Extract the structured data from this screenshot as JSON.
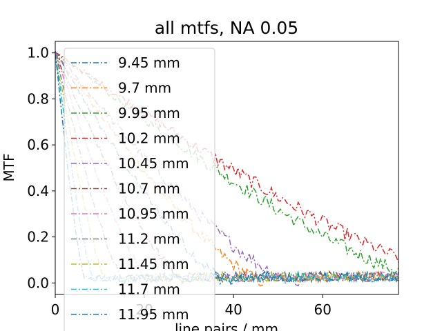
{
  "chart_data": {
    "type": "line",
    "title": "all mtfs, NA 0.05",
    "xlabel": "line pairs / mm",
    "ylabel": "MTF",
    "xlim": [
      0,
      77
    ],
    "ylim": [
      -0.05,
      1.05
    ],
    "xticks": [
      0,
      20,
      40,
      60
    ],
    "yticks": [
      0.0,
      0.2,
      0.4,
      0.6,
      0.8,
      1.0
    ],
    "grid": false,
    "legend_position": "upper-left",
    "line_style": "dash-dot",
    "series": [
      {
        "name": "9.45 mm",
        "color": "#1f77b4",
        "cutoff": 40
      },
      {
        "name": "9.7 mm",
        "color": "#ff7f0e",
        "cutoff": 48
      },
      {
        "name": "9.95 mm",
        "color": "#2ca02c",
        "cutoff": 88
      },
      {
        "name": "10.2 mm",
        "color": "#d62728",
        "cutoff": 97
      },
      {
        "name": "10.45 mm",
        "color": "#9467bd",
        "cutoff": 55
      },
      {
        "name": "10.7 mm",
        "color": "#8c564b",
        "cutoff": 30
      },
      {
        "name": "10.95 mm",
        "color": "#e377c2",
        "cutoff": 22
      },
      {
        "name": "11.2 mm",
        "color": "#7f7f7f",
        "cutoff": 16
      },
      {
        "name": "11.45 mm",
        "color": "#bcbd22",
        "cutoff": 12
      },
      {
        "name": "11.7 mm",
        "color": "#17becf",
        "cutoff": 9
      },
      {
        "name": "11.95 mm",
        "color": "#1f77b4",
        "cutoff": 7
      }
    ]
  }
}
